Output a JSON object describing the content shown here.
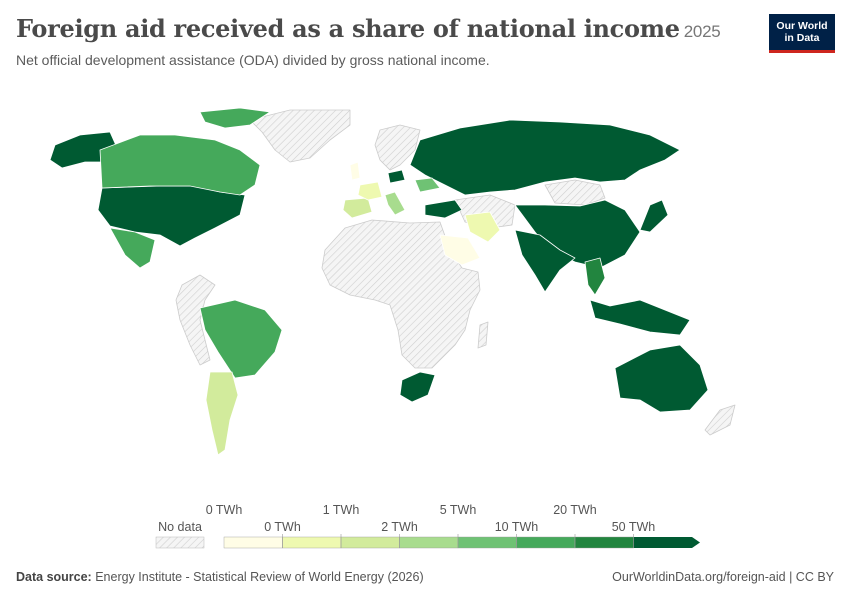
{
  "header": {
    "title": "Foreign aid received as a share of national income",
    "year": "2025",
    "subtitle": "Net official development assistance (ODA) divided by gross national income."
  },
  "logo": {
    "line1": "Our World",
    "line2": "in Data"
  },
  "legend": {
    "no_data_label": "No data",
    "upper_ticks": [
      "0 TWh",
      "1 TWh",
      "5 TWh",
      "20 TWh"
    ],
    "lower_ticks": [
      "0 TWh",
      "2 TWh",
      "10 TWh",
      "50 TWh"
    ],
    "bins": [
      {
        "color": "#fffde6"
      },
      {
        "color": "#eef9b0"
      },
      {
        "color": "#d2eb9c"
      },
      {
        "color": "#a8dc8e"
      },
      {
        "color": "#6fc274"
      },
      {
        "color": "#45a95b"
      },
      {
        "color": "#22853f"
      },
      {
        "color": "#005a32"
      }
    ]
  },
  "colors": {
    "no_data_fill": "#f0f0f0",
    "border": "#ffffff"
  },
  "footer": {
    "source_label": "Data source:",
    "source_text": "Energy Institute - Statistical Review of World Energy (2026)",
    "url": "OurWorldinData.org/foreign-aid | CC BY"
  }
}
